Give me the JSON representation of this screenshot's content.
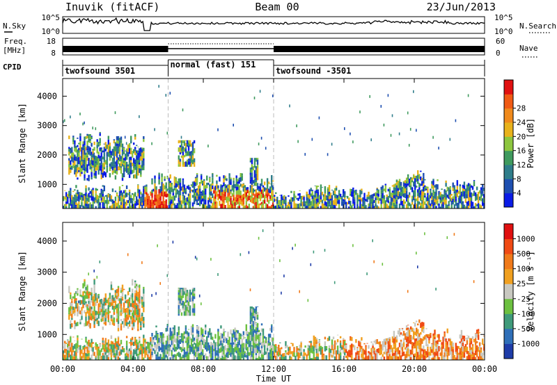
{
  "chart_data": {
    "type": "heatmap",
    "header": {
      "station": "Inuvik (fitACF)",
      "beam": "Beam 00",
      "date": "23/Jun/2013"
    },
    "top_panels": {
      "nsky": {
        "left_label": "N.Sky",
        "left_ticks": [
          "10^5",
          "10^0"
        ],
        "right_label": "N.Search",
        "right_ticks": [
          "10^5",
          "10^0"
        ]
      },
      "freq": {
        "left_label_top": "Freq.",
        "left_label_unit": "[MHz]",
        "left_ticks": [
          "18",
          "8"
        ],
        "right_label": "Nave",
        "right_ticks": [
          "60",
          "0"
        ]
      },
      "cpid": {
        "label": "CPID",
        "segments": [
          {
            "start": 0,
            "end": 6,
            "label": "twofsound 3501"
          },
          {
            "start": 6,
            "end": 12,
            "label": "normal (fast) 151"
          },
          {
            "start": 12,
            "end": 24,
            "label": "twofsound -3501"
          }
        ]
      }
    },
    "x_axis": {
      "label": "Time UT",
      "range": [
        0,
        24
      ],
      "tick_labels": [
        "00:00",
        "04:00",
        "08:00",
        "12:00",
        "16:00",
        "20:00",
        "00:00"
      ]
    },
    "panels": [
      {
        "name": "power",
        "ylabel": "Slant Range [km]",
        "ylim": [
          180,
          4600
        ],
        "ytick_labels": [
          "1000",
          "2000",
          "3000",
          "4000"
        ],
        "colorbar": {
          "label": "Power [dB]",
          "ticks": [
            "4",
            "8",
            "12",
            "16",
            "20",
            "24",
            "28"
          ],
          "colors": [
            "#0a1be6",
            "#1e4fb0",
            "#2f7d8a",
            "#3f9a5e",
            "#8dc63f",
            "#e8b21c",
            "#f08a1c",
            "#f05a14",
            "#e01010"
          ]
        }
      },
      {
        "name": "velocity",
        "ylabel": "Slant Range [km]",
        "ylim": [
          180,
          4600
        ],
        "ytick_labels": [
          "1000",
          "2000",
          "3000",
          "4000"
        ],
        "colorbar": {
          "label": "Velocity [m s⁻¹]",
          "ticks": [
            "1000",
            "500",
            "100",
            "25",
            "-25",
            "-100",
            "-500",
            "-1000"
          ],
          "colors": [
            "#1e3ca8",
            "#2f6fb8",
            "#3f9a7a",
            "#6cc040",
            "#c8c8c0",
            "#f0a020",
            "#f07a1a",
            "#f04a14",
            "#e01010"
          ]
        }
      }
    ]
  }
}
